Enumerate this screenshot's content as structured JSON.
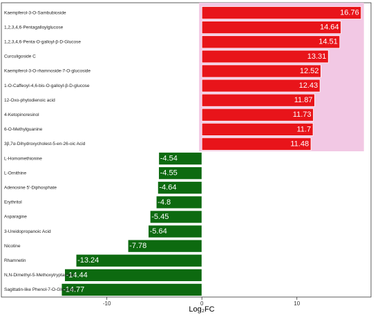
{
  "chart_data": {
    "type": "bar",
    "orientation": "horizontal",
    "x_label": "Log₂FC",
    "categories": [
      "Kaempferol-3-O-Sambubioside",
      "1,2,3,4,6-Pentagalloylglucose",
      "1,2,3,4,6-Penta-O-galloyl-β-D-Glucose",
      "Curculigoside C",
      "Kaempferol-3-O-rhamnoside-7-O-glucoside",
      "1-O-Caffeoyl-4,6-bis-O-galloyl-β-D-glucose",
      "12-Oxo-phytodienoic acid",
      "4-Ketopinoresinol",
      "6-O-Methylguanine",
      "3β,7α-Dihydroxycholest-5-en-26-oic Acid",
      "L-Homomethionine",
      "L-Ornithine",
      "Adenosine 5'-Diphosphate",
      "Erythritol",
      "Asparagine",
      "3-Ureidopropanoic Acid",
      "Nicotine",
      "Rhamnetin",
      "N,N-Dimethyl-5-Methoxytryptamine",
      "Sagittatin-like Phenol-7-O-Glucoside"
    ],
    "values": [
      16.76,
      14.64,
      14.51,
      13.31,
      12.52,
      12.43,
      11.87,
      11.73,
      11.7,
      11.48,
      -4.54,
      -4.55,
      -4.64,
      -4.8,
      -5.45,
      -5.64,
      -7.78,
      -13.24,
      -14.44,
      -14.77
    ],
    "positive_color": "#e8141a",
    "negative_color": "#0d6a10",
    "highlight_color": "#f2c8e4",
    "xlim": [
      -21.1,
      17.8
    ],
    "xticks": [
      -10,
      0,
      10
    ]
  }
}
